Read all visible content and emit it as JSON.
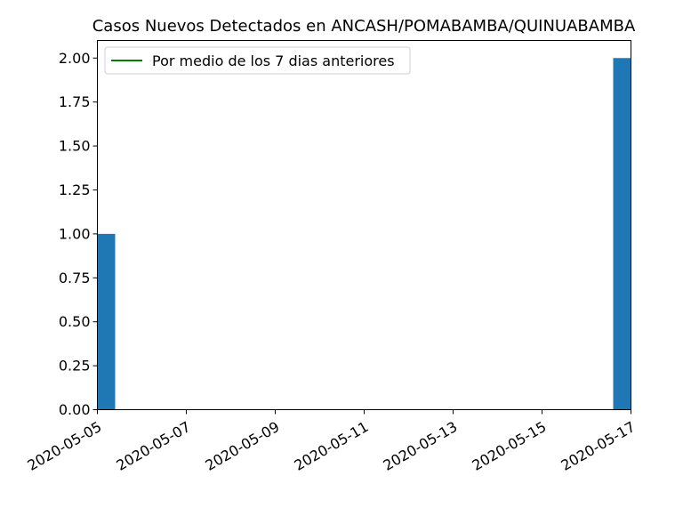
{
  "chart_data": {
    "type": "bar",
    "title": "Casos Nuevos Detectados en ANCASH/POMABAMBA/QUINUABAMBA",
    "xlabel": "",
    "ylabel": "",
    "x_dates": [
      "2020-05-05",
      "2020-05-17"
    ],
    "values": [
      1,
      2
    ],
    "xlim": [
      "2020-05-05",
      "2020-05-17"
    ],
    "ylim": [
      0,
      2.1
    ],
    "x_ticks": [
      "2020-05-05",
      "2020-05-07",
      "2020-05-09",
      "2020-05-11",
      "2020-05-13",
      "2020-05-15",
      "2020-05-17"
    ],
    "y_ticks": [
      "0.00",
      "0.25",
      "0.50",
      "0.75",
      "1.00",
      "1.25",
      "1.50",
      "1.75",
      "2.00"
    ],
    "legend": {
      "placement": "top-left",
      "entries": [
        {
          "label": "Por medio de los 7 dias anteriores",
          "color": "#008000",
          "kind": "line"
        }
      ]
    },
    "bar_color": "#1f77b4",
    "grid": false
  }
}
